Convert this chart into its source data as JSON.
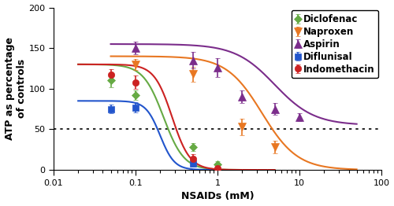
{
  "title": "",
  "xlabel": "NSAIDs (mM)",
  "ylabel": "ATP as percentage\nof controls",
  "xlim": [
    0.01,
    100
  ],
  "ylim": [
    0,
    200
  ],
  "yticks": [
    0,
    50,
    100,
    150,
    200
  ],
  "xticks": [
    0.01,
    0.1,
    1,
    10,
    100
  ],
  "hline_y": 50,
  "series": [
    {
      "name": "Diclofenac",
      "color": "#66aa44",
      "marker": "D",
      "markersize": 5,
      "x": [
        0.05,
        0.1,
        0.5,
        1.0
      ],
      "y": [
        110,
        92,
        28,
        7
      ],
      "yerr": [
        8,
        6,
        5,
        4
      ],
      "curve_top": 130,
      "curve_bottom": 0,
      "curve_ec50": 0.22,
      "curve_hill": 3.5,
      "curve_xmin": 0.02,
      "curve_xmax": 5.0
    },
    {
      "name": "Naproxen",
      "color": "#e87722",
      "marker": "v",
      "markersize": 7,
      "x": [
        0.1,
        0.5,
        2.0,
        5.0
      ],
      "y": [
        130,
        118,
        53,
        28
      ],
      "yerr": [
        7,
        9,
        10,
        8
      ],
      "curve_top": 140,
      "curve_bottom": 0,
      "curve_ec50": 3.5,
      "curve_hill": 2.0,
      "curve_xmin": 0.05,
      "curve_xmax": 50.0
    },
    {
      "name": "Aspirin",
      "color": "#7b2d8b",
      "marker": "^",
      "markersize": 7,
      "x": [
        0.1,
        0.5,
        1.0,
        2.0,
        5.0,
        10.0
      ],
      "y": [
        150,
        135,
        126,
        90,
        75,
        65
      ],
      "yerr": [
        8,
        10,
        12,
        8,
        7,
        5
      ],
      "curve_top": 155,
      "curve_bottom": 55,
      "curve_ec50": 5.0,
      "curve_hill": 1.8,
      "curve_xmin": 0.05,
      "curve_xmax": 50.0
    },
    {
      "name": "Diflunisal",
      "color": "#2255cc",
      "marker": "s",
      "markersize": 6,
      "x": [
        0.05,
        0.1,
        0.5
      ],
      "y": [
        75,
        77,
        8
      ],
      "yerr": [
        5,
        6,
        4
      ],
      "curve_top": 85,
      "curve_bottom": 0,
      "curve_ec50": 0.2,
      "curve_hill": 5.0,
      "curve_xmin": 0.02,
      "curve_xmax": 3.0
    },
    {
      "name": "Indomethacin",
      "color": "#cc2222",
      "marker": "o",
      "markersize": 6,
      "x": [
        0.05,
        0.1,
        0.5,
        1.0
      ],
      "y": [
        117,
        108,
        14,
        2
      ],
      "yerr": [
        7,
        8,
        5,
        3
      ],
      "curve_top": 130,
      "curve_bottom": 0,
      "curve_ec50": 0.28,
      "curve_hill": 4.0,
      "curve_xmin": 0.02,
      "curve_xmax": 5.0
    }
  ],
  "background_color": "#ffffff",
  "legend_fontsize": 8.5,
  "axis_fontsize": 9,
  "tick_fontsize": 8
}
